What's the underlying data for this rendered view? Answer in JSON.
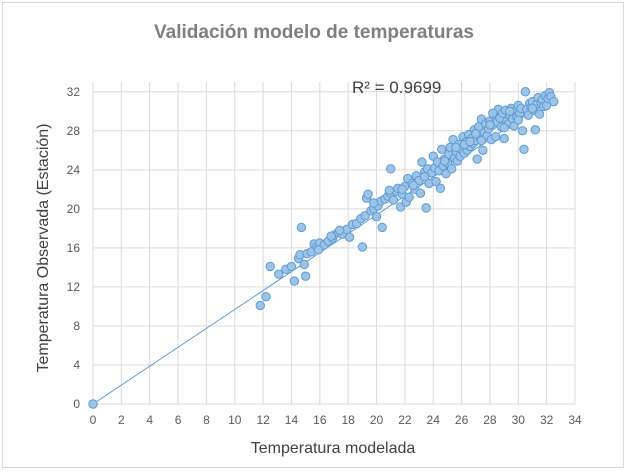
{
  "chart_data": {
    "type": "scatter",
    "title": "Validación modelo de temperaturas",
    "xlabel": "Temperatura modelada",
    "ylabel": "Temperatura Observada (Estación)",
    "xlim": [
      0,
      34
    ],
    "ylim": [
      0,
      33
    ],
    "xticks": [
      0,
      2,
      4,
      6,
      8,
      10,
      12,
      14,
      16,
      18,
      20,
      22,
      24,
      26,
      28,
      30,
      32,
      34
    ],
    "yticks": [
      0,
      4,
      8,
      12,
      16,
      20,
      24,
      28,
      32
    ],
    "grid": true,
    "legend": "none",
    "annotation": "R² = 0.9699",
    "trendline": {
      "type": "linear",
      "from": [
        0,
        0
      ],
      "to": [
        32.5,
        31.5
      ]
    },
    "marker_color": "#9dc3e6",
    "marker_edge_color": "#5b9bd5",
    "line_color": "#5b9bd5",
    "points": [
      [
        0,
        0
      ],
      [
        11.8,
        10.1
      ],
      [
        12.2,
        11.0
      ],
      [
        12.5,
        14.1
      ],
      [
        13.1,
        13.3
      ],
      [
        13.6,
        13.8
      ],
      [
        14.0,
        14.1
      ],
      [
        14.2,
        12.6
      ],
      [
        14.5,
        14.9
      ],
      [
        14.6,
        15.3
      ],
      [
        14.7,
        18.1
      ],
      [
        14.9,
        14.3
      ],
      [
        15.0,
        13.1
      ],
      [
        15.1,
        15.4
      ],
      [
        15.4,
        15.6
      ],
      [
        15.6,
        16.4
      ],
      [
        15.8,
        16.1
      ],
      [
        16.0,
        16.5
      ],
      [
        16.3,
        16.3
      ],
      [
        16.6,
        16.7
      ],
      [
        16.9,
        17.0
      ],
      [
        17.0,
        17.3
      ],
      [
        17.3,
        17.6
      ],
      [
        17.6,
        17.4
      ],
      [
        17.9,
        17.9
      ],
      [
        18.1,
        17.1
      ],
      [
        18.3,
        18.4
      ],
      [
        18.6,
        18.5
      ],
      [
        18.9,
        19.0
      ],
      [
        19.0,
        16.1
      ],
      [
        19.2,
        19.3
      ],
      [
        19.3,
        21.1
      ],
      [
        19.4,
        21.5
      ],
      [
        19.6,
        19.8
      ],
      [
        19.8,
        20.0
      ],
      [
        20.0,
        19.2
      ],
      [
        20.1,
        20.3
      ],
      [
        20.3,
        20.8
      ],
      [
        20.4,
        18.1
      ],
      [
        20.6,
        21.0
      ],
      [
        20.8,
        21.3
      ],
      [
        21.0,
        21.6
      ],
      [
        21.0,
        24.1
      ],
      [
        21.2,
        20.9
      ],
      [
        21.4,
        21.8
      ],
      [
        21.5,
        22.1
      ],
      [
        21.7,
        20.2
      ],
      [
        21.8,
        21.5
      ],
      [
        22.0,
        22.3
      ],
      [
        22.1,
        20.7
      ],
      [
        22.2,
        23.1
      ],
      [
        22.3,
        21.2
      ],
      [
        22.5,
        22.6
      ],
      [
        22.7,
        22.0
      ],
      [
        22.8,
        23.4
      ],
      [
        23.0,
        22.9
      ],
      [
        23.1,
        21.6
      ],
      [
        23.2,
        24.8
      ],
      [
        23.4,
        23.8
      ],
      [
        23.5,
        20.1
      ],
      [
        23.6,
        24.1
      ],
      [
        23.7,
        22.6
      ],
      [
        23.9,
        23.7
      ],
      [
        24.0,
        25.4
      ],
      [
        24.1,
        24.2
      ],
      [
        24.2,
        22.8
      ],
      [
        24.3,
        24.8
      ],
      [
        24.4,
        23.9
      ],
      [
        24.5,
        22.1
      ],
      [
        24.6,
        26.1
      ],
      [
        24.7,
        24.4
      ],
      [
        24.8,
        25.1
      ],
      [
        24.9,
        23.6
      ],
      [
        25.0,
        24.7
      ],
      [
        25.1,
        25.6
      ],
      [
        25.2,
        26.3
      ],
      [
        25.3,
        24.1
      ],
      [
        25.4,
        27.1
      ],
      [
        25.5,
        25.2
      ],
      [
        25.6,
        25.9
      ],
      [
        25.7,
        24.9
      ],
      [
        25.8,
        26.6
      ],
      [
        25.9,
        25.4
      ],
      [
        26.0,
        26.1
      ],
      [
        26.1,
        27.4
      ],
      [
        26.2,
        25.7
      ],
      [
        26.3,
        26.8
      ],
      [
        26.4,
        26.0
      ],
      [
        26.5,
        27.6
      ],
      [
        26.6,
        26.4
      ],
      [
        26.7,
        27.2
      ],
      [
        26.8,
        26.7
      ],
      [
        26.9,
        28.1
      ],
      [
        27.0,
        27.0
      ],
      [
        27.1,
        25.1
      ],
      [
        27.2,
        28.4
      ],
      [
        27.3,
        27.3
      ],
      [
        27.4,
        29.2
      ],
      [
        27.5,
        26.0
      ],
      [
        27.6,
        27.8
      ],
      [
        27.7,
        28.7
      ],
      [
        27.8,
        27.5
      ],
      [
        27.9,
        28.2
      ],
      [
        28.0,
        29.0
      ],
      [
        28.1,
        27.1
      ],
      [
        28.2,
        28.6
      ],
      [
        28.3,
        29.6
      ],
      [
        28.4,
        27.4
      ],
      [
        28.5,
        28.9
      ],
      [
        28.6,
        30.2
      ],
      [
        28.7,
        29.3
      ],
      [
        28.8,
        28.4
      ],
      [
        28.9,
        29.8
      ],
      [
        29.0,
        27.2
      ],
      [
        29.1,
        30.1
      ],
      [
        29.2,
        29.0
      ],
      [
        29.3,
        28.7
      ],
      [
        29.4,
        29.6
      ],
      [
        29.5,
        30.3
      ],
      [
        29.6,
        29.2
      ],
      [
        29.7,
        28.5
      ],
      [
        29.8,
        30.0
      ],
      [
        29.9,
        29.4
      ],
      [
        30.0,
        30.6
      ],
      [
        30.1,
        29.8
      ],
      [
        30.2,
        30.3
      ],
      [
        30.3,
        28.0
      ],
      [
        30.4,
        26.1
      ],
      [
        30.5,
        32.0
      ],
      [
        30.6,
        30.2
      ],
      [
        30.7,
        29.6
      ],
      [
        30.8,
        30.8
      ],
      [
        30.9,
        30.4
      ],
      [
        31.0,
        31.0
      ],
      [
        31.1,
        30.1
      ],
      [
        31.2,
        28.1
      ],
      [
        31.3,
        30.7
      ],
      [
        31.4,
        31.4
      ],
      [
        31.5,
        29.7
      ],
      [
        31.6,
        30.9
      ],
      [
        31.7,
        31.2
      ],
      [
        31.8,
        30.5
      ],
      [
        31.9,
        31.6
      ],
      [
        32.0,
        30.6
      ],
      [
        32.1,
        31.3
      ],
      [
        32.2,
        31.9
      ],
      [
        32.3,
        31.5
      ],
      [
        32.5,
        31.0
      ],
      [
        27.0,
        27.7
      ],
      [
        28.2,
        29.8
      ],
      [
        29.4,
        30.0
      ],
      [
        26.2,
        26.6
      ],
      [
        25.6,
        26.3
      ],
      [
        24.8,
        24.9
      ],
      [
        23.4,
        23.3
      ],
      [
        22.6,
        22.4
      ],
      [
        21.8,
        22.0
      ],
      [
        20.9,
        21.9
      ],
      [
        19.8,
        20.6
      ],
      [
        17.4,
        17.8
      ],
      [
        16.8,
        17.2
      ],
      [
        15.9,
        15.8
      ],
      [
        30.0,
        29.1
      ],
      [
        31.0,
        30.3
      ],
      [
        29.0,
        28.3
      ],
      [
        28.0,
        28.6
      ],
      [
        27.4,
        27.0
      ],
      [
        26.6,
        26.9
      ]
    ]
  }
}
